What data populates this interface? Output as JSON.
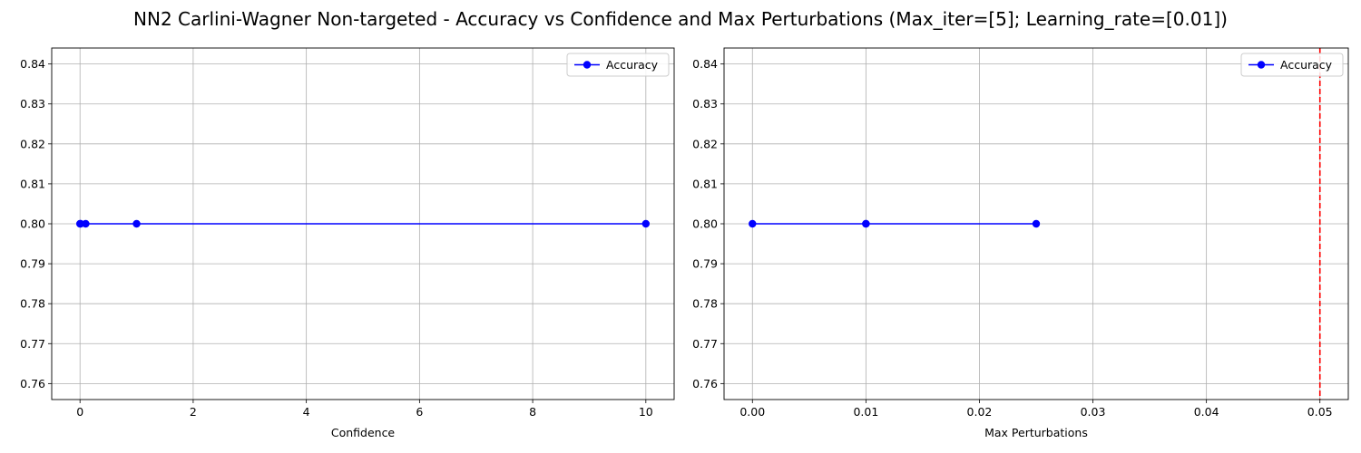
{
  "figure": {
    "title": "NN2 Carlini-Wagner Non-targeted - Accuracy vs Confidence and Max Perturbations (Max_iter=[5]; Learning_rate=[0.01])"
  },
  "chart_data": [
    {
      "type": "line",
      "xlabel": "Confidence",
      "ylabel": "",
      "x": [
        0,
        0.01,
        0.1,
        1,
        10
      ],
      "series": [
        {
          "name": "Accuracy",
          "values": [
            0.8,
            0.8,
            0.8,
            0.8,
            0.8
          ],
          "color": "#0000ff",
          "marker": "circle"
        }
      ],
      "xlim": [
        -0.5,
        10.5
      ],
      "ylim": [
        0.756,
        0.844
      ],
      "xticks": [
        0,
        2,
        4,
        6,
        8,
        10
      ],
      "xtick_labels": [
        "0",
        "2",
        "4",
        "6",
        "8",
        "10"
      ],
      "yticks": [
        0.76,
        0.77,
        0.78,
        0.79,
        0.8,
        0.81,
        0.82,
        0.83,
        0.84
      ],
      "ytick_labels": [
        "0.76",
        "0.77",
        "0.78",
        "0.79",
        "0.80",
        "0.81",
        "0.82",
        "0.83",
        "0.84"
      ],
      "grid": true,
      "legend": "top-right"
    },
    {
      "type": "line",
      "xlabel": "Max Perturbations",
      "ylabel": "",
      "x": [
        0.0,
        0.01,
        0.01,
        0.025
      ],
      "series": [
        {
          "name": "Accuracy",
          "values": [
            0.8,
            0.8,
            0.8,
            0.8
          ],
          "color": "#0000ff",
          "marker": "circle"
        }
      ],
      "reference_line": {
        "orientation": "vertical",
        "x": 0.05,
        "color": "#ff0000",
        "style": "dashed"
      },
      "xlim": [
        -0.0025,
        0.0525
      ],
      "ylim": [
        0.756,
        0.844
      ],
      "xticks": [
        0.0,
        0.01,
        0.02,
        0.03,
        0.04,
        0.05
      ],
      "xtick_labels": [
        "0.00",
        "0.01",
        "0.02",
        "0.03",
        "0.04",
        "0.05"
      ],
      "yticks": [
        0.76,
        0.77,
        0.78,
        0.79,
        0.8,
        0.81,
        0.82,
        0.83,
        0.84
      ],
      "ytick_labels": [
        "0.76",
        "0.77",
        "0.78",
        "0.79",
        "0.80",
        "0.81",
        "0.82",
        "0.83",
        "0.84"
      ],
      "grid": true,
      "legend": "top-right"
    }
  ]
}
